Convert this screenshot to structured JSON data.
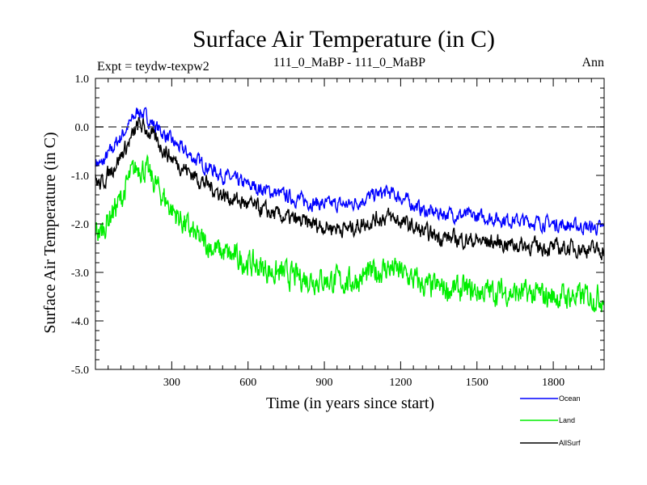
{
  "chart_data": {
    "type": "line",
    "title": "Surface Air Temperature (in C)",
    "subtitle_left": "Expt = teydw-texpw2",
    "subtitle_center": "111_0_MaBP - 111_0_MaBP",
    "subtitle_right": "Ann",
    "xlabel": "Time (in years since start)",
    "ylabel": "Surface Air Temperature (in C)",
    "xlim": [
      0,
      2000
    ],
    "ylim": [
      -5.0,
      1.0
    ],
    "x_ticks": [
      300,
      600,
      900,
      1200,
      1500,
      1800
    ],
    "x_tick_labels": [
      "300",
      "600",
      "900",
      "1200",
      "1500",
      "1800"
    ],
    "y_ticks": [
      1.0,
      0.0,
      -1.0,
      -2.0,
      -3.0,
      -4.0,
      -5.0
    ],
    "y_tick_labels": [
      "1.0",
      "0.0",
      "-1.0",
      "-2.0",
      "-3.0",
      "-4.0",
      "-5.0"
    ],
    "reference_line": 0.0,
    "legend_position": "bottom-right, outside plot",
    "series": [
      {
        "name": "Ocean",
        "color": "#0000ff",
        "x": [
          0,
          20,
          60,
          100,
          140,
          170,
          200,
          250,
          300,
          400,
          500,
          600,
          700,
          800,
          900,
          1000,
          1100,
          1150,
          1200,
          1300,
          1400,
          1500,
          1600,
          1700,
          1800,
          1900,
          2000
        ],
        "values": [
          -0.7,
          -0.8,
          -0.5,
          -0.2,
          0.1,
          0.35,
          0.2,
          -0.05,
          -0.3,
          -0.7,
          -1.0,
          -1.2,
          -1.35,
          -1.5,
          -1.6,
          -1.6,
          -1.4,
          -1.35,
          -1.45,
          -1.75,
          -1.8,
          -1.85,
          -1.9,
          -1.95,
          -2.0,
          -2.05,
          -2.1
        ]
      },
      {
        "name": "Land",
        "color": "#00ee00",
        "x": [
          0,
          20,
          60,
          100,
          140,
          170,
          200,
          250,
          300,
          400,
          500,
          600,
          700,
          800,
          900,
          1000,
          1100,
          1150,
          1200,
          1300,
          1400,
          1500,
          1600,
          1700,
          1800,
          1900,
          2000
        ],
        "values": [
          -2.1,
          -2.2,
          -1.8,
          -1.5,
          -1.0,
          -0.8,
          -0.9,
          -1.3,
          -1.7,
          -2.3,
          -2.6,
          -2.8,
          -3.0,
          -3.1,
          -3.15,
          -3.2,
          -3.0,
          -2.9,
          -3.0,
          -3.3,
          -3.35,
          -3.4,
          -3.4,
          -3.45,
          -3.5,
          -3.5,
          -3.5
        ]
      },
      {
        "name": "AllSurf",
        "color": "#000000",
        "x": [
          0,
          20,
          60,
          100,
          140,
          170,
          200,
          250,
          300,
          400,
          500,
          600,
          700,
          800,
          900,
          1000,
          1100,
          1150,
          1200,
          1300,
          1400,
          1500,
          1600,
          1700,
          1800,
          1900,
          2000
        ],
        "values": [
          -1.1,
          -1.2,
          -0.9,
          -0.6,
          -0.25,
          0.05,
          -0.05,
          -0.35,
          -0.65,
          -1.05,
          -1.4,
          -1.6,
          -1.8,
          -1.95,
          -2.05,
          -2.1,
          -1.9,
          -1.85,
          -1.95,
          -2.2,
          -2.3,
          -2.35,
          -2.4,
          -2.45,
          -2.5,
          -2.5,
          -2.55
        ]
      }
    ]
  }
}
